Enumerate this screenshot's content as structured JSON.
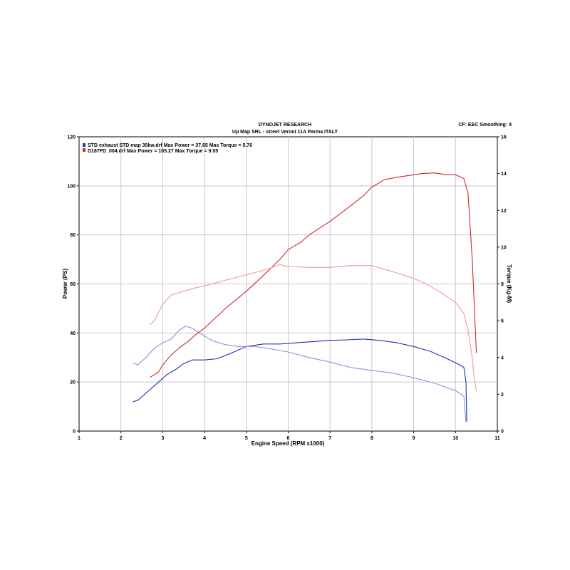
{
  "header": {
    "title": "DYNOJET RESEARCH",
    "subtitle": "Up Map SRL - street Veroni 11A Parma ITALY",
    "correction": "CF: EEC  Smoothing: 4"
  },
  "chart_data": {
    "type": "line",
    "xlabel": "Engine Speed (RPM x1000)",
    "ylabel": "Power (PS)",
    "y2label": "Torque (Kg-M)",
    "xlim": [
      1,
      11
    ],
    "ylim": [
      0,
      120
    ],
    "y2lim": [
      0,
      16
    ],
    "x_ticks": [
      "1",
      "2",
      "3",
      "4",
      "5",
      "6",
      "7",
      "8",
      "9",
      "10",
      "11"
    ],
    "y_ticks": [
      "0",
      "20",
      "40",
      "60",
      "80",
      "100",
      "120"
    ],
    "y2_ticks": [
      "0",
      "2",
      "4",
      "6",
      "8",
      "10",
      "12",
      "14",
      "16"
    ],
    "grid": true,
    "legend_position": "top-left",
    "legend": [
      {
        "text": "STD exhaust STD map 35kw.drf Max Power = 37.65     Max Torque = 5.70",
        "color": "#2233bb"
      },
      {
        "text": "D187FD_004.drf Max Power = 105.27     Max Torque = 9.05",
        "color": "#cc2a2a"
      }
    ],
    "series": [
      {
        "kind": "power",
        "axis": "left",
        "color": "#1f2fb5",
        "x": [
          2.3,
          2.4,
          2.5,
          2.7,
          2.9,
          3.1,
          3.3,
          3.5,
          3.7,
          4.0,
          4.3,
          4.6,
          5.0,
          5.4,
          5.8,
          6.2,
          6.6,
          7.0,
          7.4,
          7.8,
          8.2,
          8.6,
          9.0,
          9.4,
          9.8,
          10.1,
          10.2,
          10.25,
          10.27
        ],
        "y": [
          12,
          12.5,
          14,
          17,
          20,
          23,
          25,
          27.5,
          29,
          29,
          29.5,
          31.5,
          34.5,
          35.5,
          35.5,
          36,
          36.5,
          37,
          37.2,
          37.5,
          37,
          36,
          34.5,
          32.5,
          29.5,
          27,
          26,
          20,
          4
        ]
      },
      {
        "kind": "torque",
        "axis": "right",
        "color": "#8c8ee0",
        "x": [
          2.3,
          2.4,
          2.6,
          2.8,
          3.0,
          3.2,
          3.4,
          3.55,
          3.7,
          3.9,
          4.2,
          4.5,
          4.8,
          5.0,
          5.2,
          5.5,
          6.0,
          6.5,
          7.0,
          7.5,
          8.0,
          8.5,
          9.0,
          9.5,
          10.0,
          10.2,
          10.25
        ],
        "y": [
          3.7,
          3.6,
          4.0,
          4.5,
          4.8,
          5.0,
          5.5,
          5.7,
          5.6,
          5.3,
          4.9,
          4.7,
          4.6,
          4.6,
          4.6,
          4.5,
          4.3,
          4.0,
          3.75,
          3.45,
          3.3,
          3.15,
          2.9,
          2.6,
          2.2,
          1.9,
          0.5
        ]
      },
      {
        "kind": "power",
        "axis": "left",
        "color": "#cc2a2a",
        "x": [
          2.7,
          2.9,
          3.0,
          3.2,
          3.4,
          3.6,
          3.8,
          4.0,
          4.5,
          5.0,
          5.5,
          5.8,
          6.0,
          6.3,
          6.5,
          7.0,
          7.5,
          7.8,
          8.0,
          8.3,
          8.6,
          9.0,
          9.2,
          9.5,
          9.8,
          10.0,
          10.2,
          10.3,
          10.4,
          10.5
        ],
        "y": [
          22,
          24,
          27,
          31,
          34,
          36.5,
          39.5,
          42,
          50,
          57,
          65,
          70,
          74,
          77,
          80,
          85.5,
          92,
          96,
          99.5,
          102.5,
          103.5,
          104.5,
          105,
          105.27,
          104.5,
          104.5,
          103,
          97,
          70,
          32
        ]
      },
      {
        "kind": "torque",
        "axis": "right",
        "color": "#ec9a94",
        "x": [
          2.7,
          2.8,
          3.0,
          3.2,
          3.5,
          3.8,
          4.0,
          4.5,
          5.0,
          5.5,
          5.8,
          6.0,
          6.5,
          7.0,
          7.5,
          7.8,
          8.0,
          8.3,
          8.6,
          9.0,
          9.3,
          9.6,
          10.0,
          10.2,
          10.3,
          10.4,
          10.45,
          10.5
        ],
        "y": [
          5.8,
          6.0,
          6.9,
          7.4,
          7.6,
          7.8,
          7.9,
          8.2,
          8.5,
          8.8,
          9.05,
          8.95,
          8.9,
          8.9,
          9.0,
          9.0,
          9.0,
          8.8,
          8.6,
          8.3,
          8.0,
          7.6,
          7.0,
          6.4,
          5.5,
          4.0,
          2.8,
          2.2
        ]
      }
    ]
  }
}
